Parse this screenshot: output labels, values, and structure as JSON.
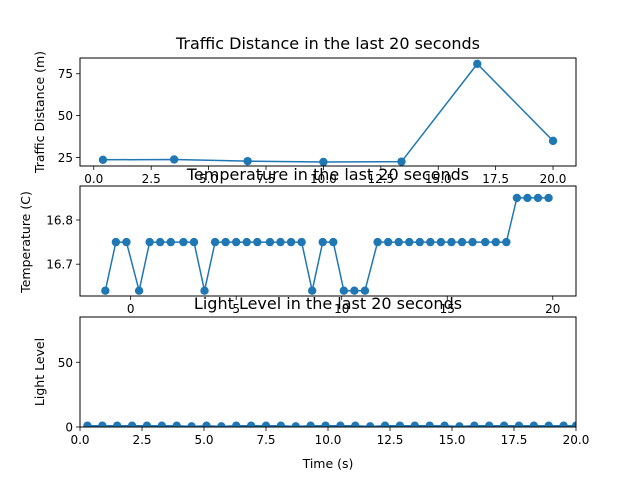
{
  "colors": {
    "series": "#1f77b4",
    "axes": "#000000",
    "background": "#ffffff"
  },
  "chart_data": [
    {
      "type": "line",
      "title": "Traffic Distance in the last 20 seconds",
      "xlabel": "",
      "ylabel": "Traffic Distance (m)",
      "xlim": [
        -0.6,
        21.0
      ],
      "ylim": [
        19.9,
        84.4
      ],
      "xticks": [
        0,
        2.5,
        5,
        7.5,
        10,
        12.5,
        15,
        17.5,
        20
      ],
      "xtick_labels": [
        "0.0",
        "2.5",
        "5.0",
        "7.5",
        "10.0",
        "12.5",
        "15.0",
        "17.5",
        "20.0"
      ],
      "yticks": [
        25,
        50,
        75
      ],
      "ytick_labels": [
        "25",
        "50",
        "75"
      ],
      "grid": false,
      "markers": true,
      "x": [
        0.4,
        3.5,
        6.7,
        10.0,
        13.4,
        16.7,
        20.0
      ],
      "y": [
        23.6,
        23.8,
        22.8,
        22.3,
        22.5,
        80.9,
        34.9
      ]
    },
    {
      "type": "line",
      "title": "Temperature in the last 20 seconds",
      "xlabel": "",
      "ylabel": "Temperature (C)",
      "xlim": [
        -2.4,
        21.1
      ],
      "ylim": [
        16.628,
        16.877
      ],
      "xticks": [
        0,
        5,
        10,
        15,
        20
      ],
      "xtick_labels": [
        "0",
        "5",
        "10",
        "15",
        "20"
      ],
      "yticks": [
        16.7,
        16.8
      ],
      "ytick_labels": [
        "16.7",
        "16.8"
      ],
      "grid": false,
      "markers": true,
      "x": [
        -1.2,
        -0.7,
        -0.2,
        0.4,
        0.9,
        1.4,
        1.9,
        2.5,
        3.0,
        3.5,
        4.0,
        4.5,
        5.0,
        5.5,
        6.0,
        6.6,
        7.1,
        7.6,
        8.1,
        8.6,
        9.1,
        9.6,
        10.1,
        10.6,
        11.1,
        11.7,
        12.2,
        12.7,
        13.2,
        13.7,
        14.2,
        14.7,
        15.2,
        15.7,
        16.2,
        16.8,
        17.3,
        17.8,
        18.3,
        18.8,
        19.3,
        19.8
      ],
      "y": [
        16.64,
        16.75,
        16.75,
        16.64,
        16.75,
        16.75,
        16.75,
        16.75,
        16.75,
        16.64,
        16.75,
        16.75,
        16.75,
        16.75,
        16.75,
        16.75,
        16.75,
        16.75,
        16.75,
        16.64,
        16.75,
        16.75,
        16.64,
        16.64,
        16.64,
        16.75,
        16.75,
        16.75,
        16.75,
        16.75,
        16.75,
        16.75,
        16.75,
        16.75,
        16.75,
        16.75,
        16.75,
        16.75,
        16.85,
        16.85,
        16.85,
        16.85
      ]
    },
    {
      "type": "line",
      "title": "Light Level in the last 20 seconds",
      "xlabel": "Time (s)",
      "ylabel": "Light Level",
      "xlim": [
        0,
        20
      ],
      "ylim": [
        0,
        85
      ],
      "xticks": [
        0,
        2.5,
        5,
        7.5,
        10,
        12.5,
        15,
        17.5,
        20
      ],
      "xtick_labels": [
        "0.0",
        "2.5",
        "5.0",
        "7.5",
        "10.0",
        "12.5",
        "15.0",
        "17.5",
        "20.0"
      ],
      "yticks": [
        0,
        50
      ],
      "ytick_labels": [
        "0",
        "50"
      ],
      "grid": false,
      "markers": true,
      "x": [
        0.3,
        0.9,
        1.5,
        2.1,
        2.7,
        3.3,
        3.9,
        4.5,
        5.1,
        5.7,
        6.3,
        6.9,
        7.5,
        8.1,
        8.7,
        9.3,
        9.9,
        10.5,
        11.1,
        11.7,
        12.3,
        12.9,
        13.5,
        14.1,
        14.7,
        15.3,
        15.9,
        16.5,
        17.1,
        17.7,
        18.3,
        18.9,
        19.5,
        20.0
      ],
      "y": [
        1.0,
        1.0,
        1.0,
        1.0,
        1.0,
        1.0,
        1.0,
        0.5,
        1.0,
        0.5,
        1.0,
        1.0,
        1.0,
        1.0,
        0.5,
        1.0,
        1.0,
        1.0,
        1.0,
        0.5,
        1.0,
        1.0,
        1.0,
        1.0,
        1.0,
        0.5,
        1.0,
        1.0,
        1.0,
        1.0,
        1.0,
        1.0,
        1.0,
        1.0
      ]
    }
  ]
}
